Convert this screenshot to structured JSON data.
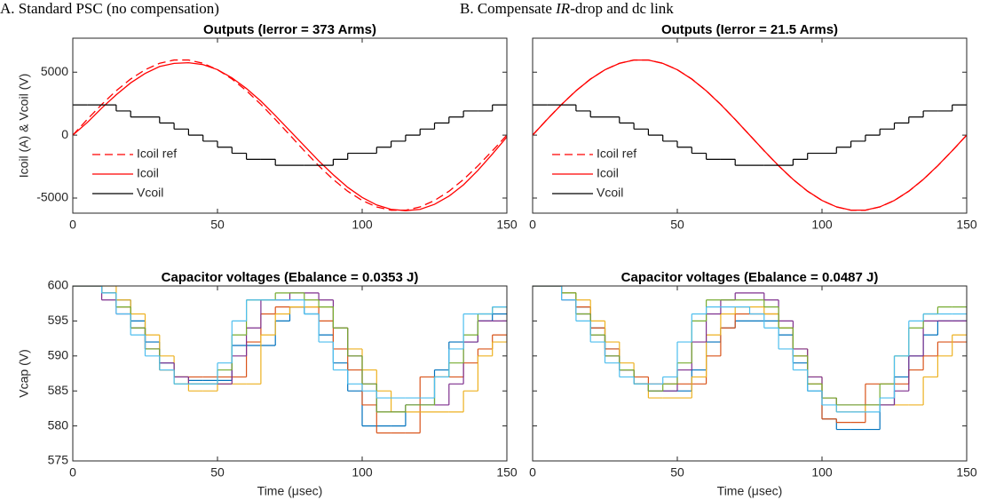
{
  "chart_data": [
    {
      "type": "line",
      "subtitle_parts": [
        "A. Standard PSC (no compensation)"
      ],
      "title": "Outputs (Ierror = 373 Arms)",
      "ylabel": "Icoil (A) & Vcoil (V)",
      "xlim": [
        0,
        150
      ],
      "xticks": [
        0,
        50,
        100,
        150
      ],
      "ylim": [
        -6200,
        7700
      ],
      "yticks": [
        -5000,
        0,
        5000
      ],
      "ytick_labels": true,
      "legend": "lower left",
      "x": [
        0,
        5,
        10,
        15,
        20,
        25,
        30,
        35,
        40,
        45,
        50,
        55,
        60,
        65,
        70,
        75,
        80,
        85,
        90,
        95,
        100,
        105,
        110,
        115,
        120,
        125,
        130,
        135,
        140,
        145,
        150
      ],
      "series": [
        {
          "name": "Icoil ref",
          "color": "#ff0000",
          "linestyle": "dashed",
          "values": [
            0,
            1247,
            2440,
            3527,
            4459,
            5196,
            5706,
            5967,
            5967,
            5706,
            5196,
            4459,
            3527,
            2440,
            1247,
            0,
            -1247,
            -2440,
            -3527,
            -4459,
            -5196,
            -5706,
            -5967,
            -5967,
            -5706,
            -5196,
            -4459,
            -3527,
            -2440,
            -1247,
            0
          ]
        },
        {
          "name": "Icoil",
          "color": "#ff0000",
          "linestyle": "solid",
          "values": [
            0,
            1000,
            2150,
            3200,
            4150,
            4900,
            5450,
            5700,
            5750,
            5600,
            5200,
            4550,
            3700,
            2700,
            1550,
            350,
            -850,
            -2050,
            -3150,
            -4150,
            -4950,
            -5550,
            -5900,
            -6000,
            -5900,
            -5500,
            -4850,
            -3950,
            -2800,
            -1500,
            -150
          ]
        },
        {
          "name": "Vcoil",
          "color": "#000000",
          "linestyle": "solid",
          "drawstyle": "steps-post",
          "values": [
            2400,
            2400,
            2400,
            1920,
            1440,
            1440,
            960,
            480,
            0,
            -480,
            -960,
            -1440,
            -1920,
            -1920,
            -2400,
            -2400,
            -2400,
            -2400,
            -1920,
            -1440,
            -1440,
            -960,
            -480,
            0,
            480,
            960,
            1440,
            1920,
            1920,
            2400,
            2400
          ]
        }
      ]
    },
    {
      "type": "line",
      "subtitle_parts": [
        "B. Compensate ",
        "IR",
        "-drop and dc link"
      ],
      "title": "Outputs (Ierror = 21.5 Arms)",
      "xlim": [
        0,
        150
      ],
      "xticks": [
        0,
        50,
        100,
        150
      ],
      "ylim": [
        -6200,
        7700
      ],
      "yticks": [
        -5000,
        0,
        5000
      ],
      "ytick_labels": false,
      "legend": "lower left",
      "x": [
        0,
        5,
        10,
        15,
        20,
        25,
        30,
        35,
        40,
        45,
        50,
        55,
        60,
        65,
        70,
        75,
        80,
        85,
        90,
        95,
        100,
        105,
        110,
        115,
        120,
        125,
        130,
        135,
        140,
        145,
        150
      ],
      "series": [
        {
          "name": "Icoil ref",
          "color": "#ff0000",
          "linestyle": "dashed",
          "values": [
            0,
            1247,
            2440,
            3527,
            4459,
            5196,
            5706,
            5967,
            5967,
            5706,
            5196,
            4459,
            3527,
            2440,
            1247,
            0,
            -1247,
            -2440,
            -3527,
            -4459,
            -5196,
            -5706,
            -5967,
            -5967,
            -5706,
            -5196,
            -4459,
            -3527,
            -2440,
            -1247,
            0
          ]
        },
        {
          "name": "Icoil",
          "color": "#ff0000",
          "linestyle": "solid",
          "values": [
            0,
            1240,
            2430,
            3520,
            4450,
            5190,
            5700,
            5960,
            5960,
            5700,
            5190,
            4450,
            3520,
            2430,
            1240,
            0,
            -1240,
            -2430,
            -3520,
            -4450,
            -5190,
            -5700,
            -5960,
            -5960,
            -5700,
            -5190,
            -4450,
            -3520,
            -2430,
            -1240,
            0
          ]
        },
        {
          "name": "Vcoil",
          "color": "#000000",
          "linestyle": "solid",
          "drawstyle": "steps-post",
          "values": [
            2400,
            2400,
            2400,
            1920,
            1440,
            1440,
            960,
            480,
            0,
            -480,
            -960,
            -1440,
            -1920,
            -1920,
            -2400,
            -2400,
            -2400,
            -2400,
            -1920,
            -1440,
            -1440,
            -960,
            -480,
            0,
            480,
            960,
            1440,
            1920,
            1920,
            2400,
            2400
          ]
        }
      ]
    },
    {
      "type": "line",
      "title": "Capacitor voltages (Ebalance = 0.0353 J)",
      "ylabel": "Vcap (V)",
      "xlabel": "Time (μsec)",
      "xlim": [
        0,
        150
      ],
      "xticks": [
        0,
        50,
        100,
        150
      ],
      "ylim": [
        575,
        600
      ],
      "yticks": [
        575,
        580,
        585,
        590,
        595,
        600
      ],
      "ytick_labels": true,
      "x": [
        0,
        5,
        10,
        15,
        20,
        25,
        30,
        35,
        40,
        45,
        50,
        55,
        60,
        65,
        70,
        75,
        80,
        85,
        90,
        95,
        100,
        105,
        110,
        115,
        120,
        125,
        130,
        135,
        140,
        145,
        150
      ],
      "series": [
        {
          "color": "#0072bd",
          "drawstyle": "steps-post",
          "values": [
            600,
            600,
            599,
            598,
            595,
            592,
            589,
            587,
            586.5,
            586.5,
            586.5,
            591.5,
            591.5,
            591.5,
            595,
            597,
            596,
            593,
            589,
            585,
            580,
            580,
            580,
            583,
            583,
            588,
            592,
            592,
            595,
            596,
            596
          ]
        },
        {
          "color": "#d95319",
          "drawstyle": "steps-post",
          "values": [
            600,
            600,
            599,
            597,
            594,
            591,
            588,
            587,
            587,
            587,
            587,
            587,
            592,
            596,
            597,
            597,
            597,
            595,
            591,
            588,
            583,
            579,
            579,
            579,
            587,
            587,
            587,
            589,
            591,
            593,
            593
          ]
        },
        {
          "color": "#edb120",
          "drawstyle": "steps-post",
          "values": [
            600,
            600,
            600,
            598,
            596,
            593,
            590,
            587,
            585,
            585,
            586,
            586,
            586,
            593,
            596,
            597,
            597,
            597,
            594,
            591,
            588,
            585,
            582,
            582,
            582,
            582,
            582,
            585,
            590,
            592,
            593
          ]
        },
        {
          "color": "#7e2f8e",
          "drawstyle": "steps-post",
          "values": [
            600,
            600,
            598,
            596,
            594,
            591,
            589,
            587,
            586,
            586,
            586,
            590,
            594,
            598,
            598,
            599,
            599,
            598,
            594,
            590,
            586,
            582,
            582,
            583,
            583,
            583,
            586,
            592,
            595,
            595,
            595
          ]
        },
        {
          "color": "#77ac30",
          "drawstyle": "steps-post",
          "values": [
            600,
            600,
            599,
            597,
            594,
            591,
            588,
            586,
            586,
            586,
            588,
            593,
            598,
            598,
            599,
            599,
            598,
            597,
            594,
            590,
            586,
            582,
            582,
            583,
            583,
            587,
            589,
            593,
            596,
            597,
            597
          ]
        },
        {
          "color": "#4dbeee",
          "drawstyle": "steps-post",
          "values": [
            600,
            600,
            599,
            596,
            593,
            590,
            588,
            586,
            586,
            586,
            589,
            595,
            598,
            598,
            598,
            598,
            596,
            592,
            588,
            586,
            585,
            584,
            584,
            584,
            584,
            587,
            591,
            596,
            596,
            597,
            597
          ]
        }
      ]
    },
    {
      "type": "line",
      "title": "Capacitor voltages (Ebalance = 0.0487 J)",
      "xlabel": "Time (μsec)",
      "xlim": [
        0,
        150
      ],
      "xticks": [
        0,
        50,
        100,
        150
      ],
      "ylim": [
        575,
        600
      ],
      "yticks": [
        575,
        580,
        585,
        590,
        595,
        600
      ],
      "ytick_labels": false,
      "x": [
        0,
        5,
        10,
        15,
        20,
        25,
        30,
        35,
        40,
        45,
        50,
        55,
        60,
        65,
        70,
        75,
        80,
        85,
        90,
        95,
        100,
        105,
        110,
        115,
        120,
        125,
        130,
        135,
        140,
        145,
        150
      ],
      "series": [
        {
          "color": "#0072bd",
          "drawstyle": "steps-post",
          "values": [
            600,
            600,
            599,
            597,
            594,
            591,
            588,
            586,
            585,
            585,
            585,
            588,
            592,
            594,
            595,
            595,
            595,
            593,
            589,
            585,
            581,
            579.5,
            579.5,
            579.5,
            583,
            587,
            590,
            593,
            595,
            595,
            595
          ]
        },
        {
          "color": "#d95319",
          "drawstyle": "steps-post",
          "values": [
            600,
            600,
            599,
            597,
            594,
            591,
            588,
            587,
            586,
            586,
            586,
            586,
            590,
            594,
            596,
            596,
            596,
            594,
            590,
            586,
            581,
            580.5,
            580.5,
            586,
            586,
            586,
            588,
            590,
            592,
            592,
            592
          ]
        },
        {
          "color": "#edb120",
          "drawstyle": "steps-post",
          "values": [
            600,
            600,
            599,
            598,
            595,
            592,
            589,
            586,
            584,
            584,
            584,
            587,
            593,
            596,
            597,
            597,
            596,
            594,
            591,
            587,
            584,
            582,
            582,
            583,
            583,
            583,
            583,
            587,
            590,
            593,
            593
          ]
        },
        {
          "color": "#7e2f8e",
          "drawstyle": "steps-post",
          "values": [
            600,
            600,
            598,
            596,
            593,
            590,
            588,
            586,
            585,
            585,
            588,
            592,
            596,
            598,
            599,
            599,
            598,
            595,
            591,
            587,
            584,
            583,
            583,
            583,
            583,
            585,
            590,
            595,
            595,
            595,
            595
          ]
        },
        {
          "color": "#77ac30",
          "drawstyle": "steps-post",
          "values": [
            600,
            600,
            599,
            596,
            593,
            590,
            588,
            586,
            585,
            586,
            589,
            595,
            598,
            598,
            598,
            598,
            597,
            594,
            590,
            586,
            584,
            583,
            583,
            583,
            586,
            590,
            594,
            596,
            597,
            597,
            597
          ]
        },
        {
          "color": "#4dbeee",
          "drawstyle": "steps-post",
          "values": [
            600,
            600,
            598,
            595,
            592,
            589,
            587,
            586,
            586,
            587,
            592,
            596,
            597,
            597,
            597,
            596,
            594,
            591,
            588,
            585,
            583,
            582,
            582,
            582,
            584,
            590,
            595,
            596,
            596,
            596,
            596
          ]
        }
      ]
    }
  ]
}
